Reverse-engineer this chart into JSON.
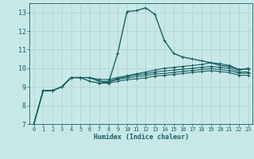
{
  "xlabel": "Humidex (Indice chaleur)",
  "xlim": [
    -0.5,
    23.5
  ],
  "ylim": [
    7,
    13.5
  ],
  "yticks": [
    7,
    8,
    9,
    10,
    11,
    12,
    13
  ],
  "xticks": [
    0,
    1,
    2,
    3,
    4,
    5,
    6,
    7,
    8,
    9,
    10,
    11,
    12,
    13,
    14,
    15,
    16,
    17,
    18,
    19,
    20,
    21,
    22,
    23
  ],
  "bg_color": "#c8e8e8",
  "line_color": "#1a6060",
  "grid_color": "#b0d0d0",
  "lines": [
    [
      7.0,
      8.8,
      8.8,
      9.0,
      9.5,
      9.5,
      9.3,
      9.2,
      9.2,
      10.8,
      13.05,
      13.1,
      13.25,
      12.9,
      11.5,
      10.8,
      10.6,
      10.5,
      10.4,
      10.3,
      10.15,
      10.1,
      9.9,
      10.0
    ],
    [
      7.0,
      8.8,
      8.8,
      9.0,
      9.5,
      9.5,
      9.5,
      9.4,
      9.4,
      9.5,
      9.6,
      9.7,
      9.8,
      9.9,
      10.0,
      10.05,
      10.1,
      10.15,
      10.2,
      10.3,
      10.25,
      10.15,
      9.95,
      9.95
    ],
    [
      7.0,
      8.8,
      8.8,
      9.0,
      9.5,
      9.5,
      9.5,
      9.3,
      9.3,
      9.45,
      9.55,
      9.65,
      9.7,
      9.8,
      9.85,
      9.9,
      9.95,
      10.0,
      10.05,
      10.1,
      10.05,
      10.0,
      9.8,
      9.8
    ],
    [
      7.0,
      8.8,
      8.8,
      9.0,
      9.5,
      9.5,
      9.5,
      9.3,
      9.25,
      9.4,
      9.48,
      9.55,
      9.6,
      9.7,
      9.72,
      9.78,
      9.83,
      9.88,
      9.93,
      9.98,
      9.93,
      9.88,
      9.73,
      9.73
    ],
    [
      7.0,
      8.8,
      8.8,
      9.0,
      9.5,
      9.5,
      9.5,
      9.3,
      9.2,
      9.3,
      9.38,
      9.43,
      9.48,
      9.58,
      9.62,
      9.67,
      9.72,
      9.77,
      9.82,
      9.87,
      9.82,
      9.77,
      9.62,
      9.62
    ]
  ],
  "markers": [
    true,
    true,
    true,
    true,
    true
  ],
  "linewidths": [
    1.0,
    0.8,
    0.8,
    0.8,
    0.8
  ]
}
